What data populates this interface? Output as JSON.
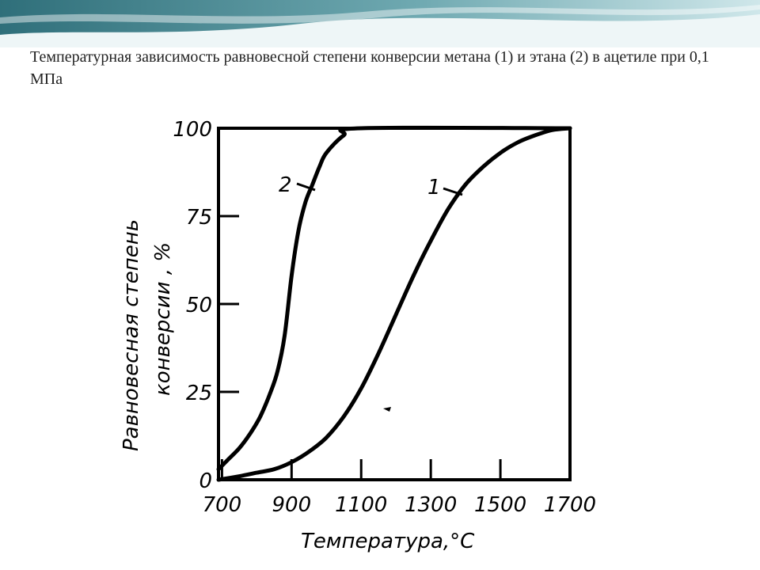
{
  "slide": {
    "title": "Температурная зависимость равновесной степени конверсии метана (1) и этана (2) в ацетиле при 0,1 МПа"
  },
  "colors": {
    "banner_dark": "#2f6f7a",
    "banner_light": "#cfe7ea",
    "ink": "#000000"
  },
  "chart_data": {
    "type": "line",
    "title": "",
    "xlabel": "Температура,°С",
    "ylabel_line1": "Равновесная степень",
    "ylabel_line2": "конверсии , %",
    "xlim": [
      690,
      1700
    ],
    "ylim": [
      0,
      100
    ],
    "xticks": [
      700,
      900,
      1100,
      1300,
      1500,
      1700
    ],
    "yticks": [
      0,
      25,
      50,
      75,
      100
    ],
    "grid": false,
    "series": [
      {
        "name": "1",
        "x": [
          690,
          750,
          800,
          850,
          900,
          950,
          1000,
          1050,
          1100,
          1150,
          1200,
          1250,
          1300,
          1350,
          1400,
          1450,
          1500,
          1550,
          1600,
          1650,
          1700
        ],
        "y": [
          0,
          1,
          2,
          3,
          5,
          8,
          12,
          18,
          26,
          36,
          47,
          58,
          68,
          77,
          84,
          89,
          93,
          96,
          98,
          99.5,
          100
        ]
      },
      {
        "name": "2",
        "x": [
          690,
          720,
          750,
          780,
          810,
          840,
          860,
          880,
          900,
          920,
          940,
          960,
          980,
          1000,
          1050,
          1100,
          1700
        ],
        "y": [
          3,
          6,
          9,
          13,
          18,
          25,
          31,
          41,
          58,
          71,
          79,
          84,
          89,
          93,
          98,
          100,
          100
        ]
      }
    ]
  }
}
